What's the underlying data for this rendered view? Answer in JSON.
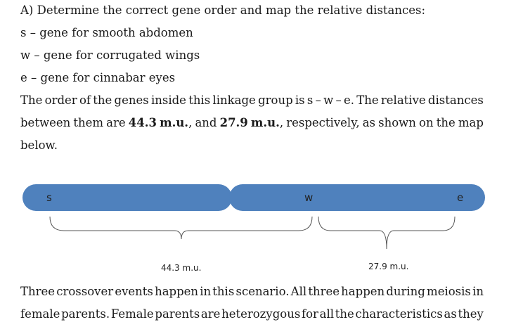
{
  "heading": "A) Determine the correct gene order and map the relative distances:",
  "genes": [
    "s – gene for smooth abdomen",
    "w – gene for corrugated wings",
    "e – gene for cinnabar eyes"
  ],
  "order_paragraph": {
    "line1": "The order of the genes inside this linkage group is s – w – e. The relative distances",
    "line2_a": "between them are",
    "line2_b": "44.3 m.u.",
    "line2_c": ", and",
    "line2_d": "27.9 m.u.",
    "line2_e": ", respectively, as shown on the map",
    "line3": "below."
  },
  "map": {
    "gene_labels": [
      "s",
      "w",
      "e"
    ],
    "distances": [
      "44.3 m.u.",
      "27.9 m.u."
    ],
    "chromosome_color": "#4f81bd"
  },
  "crossover_paragraph": {
    "line1": "Three crossover events happen in this scenario. All three happen during meiosis in",
    "line2": "female parents. Female parents are heterozygous for all the characteristics as they"
  }
}
